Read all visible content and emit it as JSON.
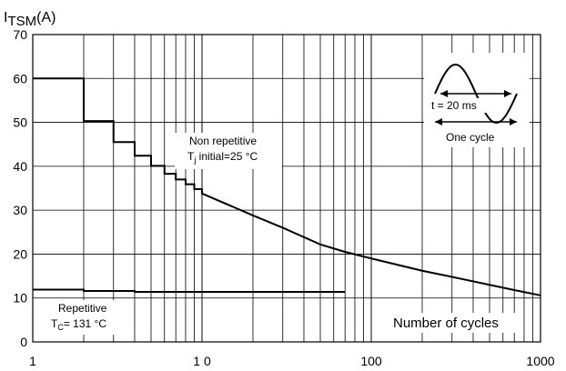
{
  "chart_data": {
    "type": "line",
    "title": "",
    "ylabel_main": "I",
    "ylabel_sub": "TSM",
    "ylabel_unit": "(A)",
    "xlabel": "Number of cycles",
    "x_scale": "log",
    "xlim": [
      1,
      1000
    ],
    "ylim": [
      0,
      70
    ],
    "grid": true,
    "x_tick_labels": [
      {
        "x": 1,
        "label": "1"
      },
      {
        "x": 10,
        "label": "1 0"
      },
      {
        "x": 100,
        "label": "100"
      },
      {
        "x": 1000,
        "label": "1000"
      }
    ],
    "y_ticks": [
      0,
      10,
      20,
      30,
      40,
      50,
      60,
      70
    ],
    "series": [
      {
        "name": "Non repetitive",
        "points": [
          [
            1,
            60
          ],
          [
            2,
            60
          ],
          [
            2,
            50.3
          ],
          [
            3,
            50.3
          ],
          [
            3,
            45.5
          ],
          [
            4,
            45.5
          ],
          [
            4,
            42.4
          ],
          [
            5,
            42.4
          ],
          [
            5,
            40.1
          ],
          [
            6,
            40.1
          ],
          [
            6,
            38.3
          ],
          [
            7,
            38.3
          ],
          [
            7,
            37
          ],
          [
            8,
            37
          ],
          [
            8,
            35.9
          ],
          [
            9,
            35.9
          ],
          [
            9,
            34.8
          ],
          [
            10,
            34.8
          ],
          [
            10,
            33.8
          ],
          [
            20,
            28.8
          ],
          [
            30,
            26
          ],
          [
            50,
            22.2
          ],
          [
            70,
            20.5
          ],
          [
            100,
            19
          ],
          [
            200,
            16.2
          ],
          [
            300,
            14.8
          ],
          [
            500,
            13
          ],
          [
            700,
            11.8
          ],
          [
            1000,
            10.6
          ]
        ]
      },
      {
        "name": "Repetitive",
        "points": [
          [
            1,
            11.9
          ],
          [
            2,
            11.9
          ],
          [
            2,
            11.6
          ],
          [
            4,
            11.6
          ],
          [
            4,
            11.4
          ],
          [
            70,
            11.4
          ]
        ]
      }
    ],
    "annotations": {
      "non_repetitive_line1": "Non repetitive",
      "non_repetitive_line2_main": "T",
      "non_repetitive_line2_sub": "j",
      "non_repetitive_line2_rest": " initial=25 °C",
      "repetitive_line1": "Repetitive",
      "repetitive_line2_main": "T",
      "repetitive_line2_sub": "C",
      "repetitive_line2_rest": "= 131 °C",
      "inset_t_label": "t = 20 ms",
      "inset_cycle_label": "One cycle"
    },
    "colors": {
      "line": "#000000",
      "grid": "#000000",
      "background": "#ffffff"
    }
  }
}
